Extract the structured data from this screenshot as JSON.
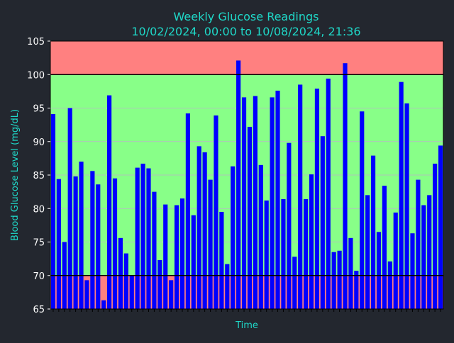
{
  "chart_data": {
    "type": "bar",
    "title": "Weekly Glucose Readings",
    "subtitle": "10/02/2024, 00:00 to 10/08/2024, 21:36",
    "xlabel": "Time",
    "ylabel": "Blood Glucose Level (mg/dL)",
    "ylim": [
      65,
      105
    ],
    "yticks": [
      65,
      70,
      75,
      80,
      85,
      90,
      95,
      100,
      105
    ],
    "grid": true,
    "bands": [
      {
        "name": "high",
        "from": 100,
        "to": 105,
        "color": "#ff8080"
      },
      {
        "name": "target",
        "from": 70,
        "to": 100,
        "color": "#88ff88"
      },
      {
        "name": "low",
        "from": 65,
        "to": 70,
        "color": "#ff8080"
      }
    ],
    "thresholds": [
      70,
      100
    ],
    "values": [
      94.1,
      84.4,
      75.0,
      95.0,
      84.8,
      87.0,
      69.3,
      85.6,
      83.6,
      66.3,
      96.9,
      84.5,
      75.6,
      73.3,
      70.0,
      86.1,
      86.7,
      86.0,
      82.5,
      72.3,
      80.6,
      69.3,
      80.5,
      81.5,
      94.2,
      79.0,
      89.3,
      88.4,
      84.3,
      93.9,
      79.5,
      71.7,
      86.3,
      102.1,
      96.6,
      92.2,
      96.8,
      86.5,
      81.2,
      96.6,
      97.6,
      81.4,
      89.8,
      72.8,
      98.5,
      81.4,
      85.1,
      97.9,
      90.8,
      99.4,
      73.5,
      73.7,
      101.7,
      75.6,
      70.7,
      94.5,
      82.0,
      87.9,
      76.5,
      83.4,
      72.1,
      79.4,
      98.9,
      95.7,
      76.3,
      84.3,
      80.5,
      82.0,
      86.7,
      89.4
    ]
  },
  "colors": {
    "background": "#23272f",
    "text": "#1fd8c8",
    "tick_text": "#ffffff",
    "bar": "#0000ff",
    "band_out_of_range": "#ff8080",
    "band_in_range": "#88ff88",
    "threshold_line": "#000000",
    "grid": "#c9a0dc"
  }
}
